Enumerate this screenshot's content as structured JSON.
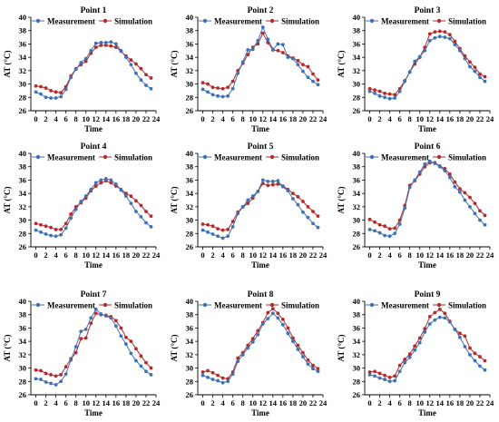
{
  "chart_data": [
    {
      "type": "line",
      "title": "Point 1",
      "xlabel": "Time",
      "ylabel": "AT (°C)",
      "x": [
        0,
        1,
        2,
        3,
        4,
        5,
        6,
        7,
        8,
        9,
        10,
        11,
        12,
        13,
        14,
        15,
        16,
        17,
        18,
        19,
        20,
        21,
        22,
        23
      ],
      "xticks": [
        0,
        2,
        4,
        6,
        8,
        10,
        12,
        14,
        16,
        18,
        20,
        22,
        24
      ],
      "yticks": [
        26,
        28,
        30,
        32,
        34,
        36,
        38,
        40
      ],
      "xlim": [
        -1,
        24
      ],
      "ylim": [
        26,
        40
      ],
      "legend_position": "top",
      "series": [
        {
          "name": "Measurement",
          "color": "#3e72b5",
          "values": [
            28.8,
            28.5,
            28.0,
            27.9,
            27.9,
            28.1,
            29.2,
            31.0,
            32.2,
            33.2,
            33.8,
            35.0,
            36.1,
            36.2,
            36.2,
            36.3,
            36.0,
            35.0,
            34.0,
            32.9,
            31.6,
            30.6,
            29.8,
            29.3
          ]
        },
        {
          "name": "Simulation",
          "color": "#b52a2a",
          "values": [
            29.7,
            29.6,
            29.4,
            29.0,
            28.8,
            28.7,
            29.6,
            31.2,
            32.3,
            32.9,
            33.4,
            34.6,
            35.5,
            35.8,
            35.8,
            35.7,
            35.5,
            34.9,
            34.2,
            33.6,
            33.0,
            32.3,
            31.4,
            30.9
          ]
        }
      ]
    },
    {
      "type": "line",
      "title": "Point 2",
      "xlabel": "Time",
      "ylabel": "AT (°C)",
      "x": [
        0,
        1,
        2,
        3,
        4,
        5,
        6,
        7,
        8,
        9,
        10,
        11,
        12,
        13,
        14,
        15,
        16,
        17,
        18,
        19,
        20,
        21,
        22,
        23
      ],
      "xticks": [
        0,
        2,
        4,
        6,
        8,
        10,
        12,
        14,
        16,
        18,
        20,
        22,
        24
      ],
      "yticks": [
        26,
        28,
        30,
        32,
        34,
        36,
        38,
        40
      ],
      "xlim": [
        -1,
        24
      ],
      "ylim": [
        26,
        40
      ],
      "legend_position": "top",
      "series": [
        {
          "name": "Measurement",
          "color": "#3e72b5",
          "values": [
            29.2,
            28.8,
            28.4,
            28.2,
            28.1,
            28.2,
            29.3,
            31.6,
            33.3,
            35.1,
            35.2,
            36.5,
            38.5,
            36.7,
            35.2,
            36.0,
            35.9,
            34.0,
            33.8,
            32.9,
            31.9,
            31.0,
            30.4,
            29.9
          ]
        },
        {
          "name": "Simulation",
          "color": "#b52a2a",
          "values": [
            30.2,
            30.0,
            29.5,
            29.4,
            29.3,
            29.5,
            30.4,
            32.0,
            33.1,
            34.4,
            35.5,
            36.0,
            37.6,
            36.2,
            35.1,
            35.0,
            34.7,
            34.2,
            33.9,
            33.5,
            32.9,
            32.6,
            31.5,
            30.6
          ]
        }
      ]
    },
    {
      "type": "line",
      "title": "Point 3",
      "xlabel": "Time",
      "ylabel": "AT (°C)",
      "x": [
        0,
        1,
        2,
        3,
        4,
        5,
        6,
        7,
        8,
        9,
        10,
        11,
        12,
        13,
        14,
        15,
        16,
        17,
        18,
        19,
        20,
        21,
        22,
        23
      ],
      "xticks": [
        0,
        2,
        4,
        6,
        8,
        10,
        12,
        14,
        16,
        18,
        20,
        22,
        24
      ],
      "yticks": [
        26,
        28,
        30,
        32,
        34,
        36,
        38,
        40
      ],
      "xlim": [
        -1,
        24
      ],
      "ylim": [
        26,
        40
      ],
      "legend_position": "top",
      "series": [
        {
          "name": "Measurement",
          "color": "#3e72b5",
          "values": [
            28.9,
            28.6,
            28.2,
            28.0,
            27.8,
            27.9,
            28.9,
            30.4,
            31.8,
            33.4,
            34.1,
            35.0,
            36.5,
            36.9,
            37.1,
            37.0,
            36.8,
            35.9,
            35.0,
            33.8,
            32.6,
            31.9,
            31.0,
            30.4
          ]
        },
        {
          "name": "Simulation",
          "color": "#b52a2a",
          "values": [
            29.3,
            29.1,
            28.9,
            28.6,
            28.5,
            28.4,
            29.3,
            30.5,
            31.8,
            33.0,
            34.0,
            35.5,
            37.5,
            37.8,
            37.9,
            37.8,
            37.4,
            36.4,
            35.3,
            34.2,
            33.3,
            32.5,
            31.5,
            31.1
          ]
        }
      ]
    },
    {
      "type": "line",
      "title": "Point 4",
      "xlabel": "Time",
      "ylabel": "AT (°C)",
      "x": [
        0,
        1,
        2,
        3,
        4,
        5,
        6,
        7,
        8,
        9,
        10,
        11,
        12,
        13,
        14,
        15,
        16,
        17,
        18,
        19,
        20,
        21,
        22,
        23
      ],
      "xticks": [
        0,
        2,
        4,
        6,
        8,
        10,
        12,
        14,
        16,
        18,
        20,
        22,
        24
      ],
      "yticks": [
        26,
        28,
        30,
        32,
        34,
        36,
        38,
        40
      ],
      "xlim": [
        -1,
        24
      ],
      "ylim": [
        26,
        40
      ],
      "legend_position": "top",
      "series": [
        {
          "name": "Measurement",
          "color": "#3e72b5",
          "values": [
            28.5,
            28.2,
            27.9,
            27.7,
            27.6,
            27.8,
            28.8,
            30.3,
            31.6,
            32.8,
            33.6,
            34.6,
            35.6,
            36.0,
            36.2,
            36.0,
            35.4,
            34.5,
            33.6,
            32.5,
            31.3,
            30.5,
            29.6,
            29.0
          ]
        },
        {
          "name": "Simulation",
          "color": "#b52a2a",
          "values": [
            29.5,
            29.3,
            29.1,
            28.9,
            28.6,
            28.6,
            29.5,
            30.9,
            32.0,
            32.6,
            33.3,
            34.4,
            35.1,
            35.6,
            35.9,
            35.6,
            35.1,
            34.6,
            34.0,
            33.6,
            32.9,
            32.2,
            31.3,
            30.6
          ]
        }
      ]
    },
    {
      "type": "line",
      "title": "Point 5",
      "xlabel": "Time",
      "ylabel": "AT (°C)",
      "x": [
        0,
        1,
        2,
        3,
        4,
        5,
        6,
        7,
        8,
        9,
        10,
        11,
        12,
        13,
        14,
        15,
        16,
        17,
        18,
        19,
        20,
        21,
        22,
        23
      ],
      "xticks": [
        0,
        2,
        4,
        6,
        8,
        10,
        12,
        14,
        16,
        18,
        20,
        22,
        24
      ],
      "yticks": [
        26,
        28,
        30,
        32,
        34,
        36,
        38,
        40
      ],
      "xlim": [
        -1,
        24
      ],
      "ylim": [
        26,
        40
      ],
      "legend_position": "top",
      "series": [
        {
          "name": "Measurement",
          "color": "#3e72b5",
          "values": [
            28.5,
            28.2,
            27.9,
            27.6,
            27.3,
            27.6,
            29.0,
            31.0,
            32.0,
            33.0,
            33.6,
            34.3,
            36.0,
            35.8,
            35.8,
            35.9,
            35.0,
            34.4,
            33.2,
            32.3,
            31.2,
            30.4,
            29.5,
            28.9
          ]
        },
        {
          "name": "Simulation",
          "color": "#b52a2a",
          "values": [
            29.4,
            29.3,
            29.1,
            28.7,
            28.5,
            28.6,
            29.8,
            31.2,
            32.0,
            32.5,
            33.3,
            34.3,
            35.5,
            35.2,
            35.3,
            35.4,
            35.1,
            34.6,
            34.0,
            33.5,
            32.8,
            32.0,
            31.3,
            30.6
          ]
        }
      ]
    },
    {
      "type": "line",
      "title": "Point 6",
      "xlabel": "Time",
      "ylabel": "AT (°C)",
      "x": [
        0,
        1,
        2,
        3,
        4,
        5,
        6,
        7,
        8,
        9,
        10,
        11,
        12,
        13,
        14,
        15,
        16,
        17,
        18,
        19,
        20,
        21,
        22,
        23
      ],
      "xticks": [
        0,
        2,
        4,
        6,
        8,
        10,
        12,
        14,
        16,
        18,
        20,
        22,
        24
      ],
      "yticks": [
        26,
        28,
        30,
        32,
        34,
        36,
        38,
        40
      ],
      "xlim": [
        -1,
        24
      ],
      "ylim": [
        26,
        40
      ],
      "legend_position": "top",
      "series": [
        {
          "name": "Measurement",
          "color": "#3e72b5",
          "values": [
            28.6,
            28.4,
            28.1,
            27.7,
            27.6,
            28.0,
            29.4,
            31.8,
            34.9,
            36.0,
            37.2,
            38.4,
            38.8,
            38.5,
            38.0,
            37.4,
            36.4,
            35.0,
            34.2,
            33.0,
            32.0,
            31.0,
            30.0,
            29.3
          ]
        },
        {
          "name": "Simulation",
          "color": "#b52a2a",
          "values": [
            30.1,
            29.7,
            29.3,
            29.1,
            28.7,
            28.8,
            30.0,
            32.2,
            35.2,
            35.9,
            36.9,
            38.0,
            38.6,
            38.6,
            38.1,
            37.7,
            36.9,
            35.7,
            34.7,
            34.1,
            33.4,
            32.5,
            31.4,
            30.7
          ]
        }
      ]
    },
    {
      "type": "line",
      "title": "Point 7",
      "xlabel": "Time",
      "ylabel": "AT (°C)",
      "x": [
        0,
        1,
        2,
        3,
        4,
        5,
        6,
        7,
        8,
        9,
        10,
        11,
        12,
        13,
        14,
        15,
        16,
        17,
        18,
        19,
        20,
        21,
        22,
        23
      ],
      "xticks": [
        0,
        2,
        4,
        6,
        8,
        10,
        12,
        14,
        16,
        18,
        20,
        22,
        24
      ],
      "yticks": [
        26,
        28,
        30,
        32,
        34,
        36,
        38,
        40
      ],
      "xlim": [
        -1,
        24
      ],
      "ylim": [
        26,
        40
      ],
      "legend_position": "top",
      "series": [
        {
          "name": "Measurement",
          "color": "#3e72b5",
          "values": [
            28.4,
            28.3,
            27.9,
            27.7,
            27.5,
            28.0,
            29.1,
            31.2,
            33.2,
            35.5,
            35.8,
            37.5,
            38.8,
            38.1,
            37.8,
            37.5,
            36.3,
            34.8,
            33.6,
            32.2,
            31.1,
            30.3,
            29.5,
            29.0
          ]
        },
        {
          "name": "Simulation",
          "color": "#b52a2a",
          "values": [
            29.7,
            29.6,
            29.2,
            29.0,
            28.8,
            29.0,
            30.2,
            31.4,
            32.3,
            34.4,
            34.5,
            36.7,
            38.2,
            38.0,
            37.9,
            37.7,
            37.1,
            36.0,
            34.6,
            34.0,
            32.9,
            31.8,
            30.8,
            30.0
          ]
        }
      ]
    },
    {
      "type": "line",
      "title": "Point 8",
      "xlabel": "Time",
      "ylabel": "AT (°C)",
      "x": [
        0,
        1,
        2,
        3,
        4,
        5,
        6,
        7,
        8,
        9,
        10,
        11,
        12,
        13,
        14,
        15,
        16,
        17,
        18,
        19,
        20,
        21,
        22,
        23
      ],
      "xticks": [
        0,
        2,
        4,
        6,
        8,
        10,
        12,
        14,
        16,
        18,
        20,
        22,
        24
      ],
      "yticks": [
        26,
        28,
        30,
        32,
        34,
        36,
        38,
        40
      ],
      "xlim": [
        -1,
        24
      ],
      "ylim": [
        26,
        40
      ],
      "legend_position": "top",
      "series": [
        {
          "name": "Measurement",
          "color": "#3e72b5",
          "values": [
            28.9,
            28.6,
            28.3,
            28.1,
            27.8,
            28.0,
            29.1,
            31.0,
            32.0,
            33.0,
            33.9,
            35.0,
            36.6,
            37.4,
            38.2,
            37.5,
            36.5,
            35.2,
            34.0,
            32.8,
            31.7,
            30.6,
            29.9,
            29.5
          ]
        },
        {
          "name": "Simulation",
          "color": "#b52a2a",
          "values": [
            29.4,
            29.6,
            29.3,
            28.9,
            28.5,
            28.4,
            29.4,
            31.5,
            32.3,
            33.4,
            34.4,
            35.6,
            36.8,
            38.3,
            38.9,
            38.2,
            37.3,
            36.0,
            34.5,
            33.4,
            32.3,
            31.2,
            30.4,
            29.9
          ]
        }
      ]
    },
    {
      "type": "line",
      "title": "Point 9",
      "xlabel": "Time",
      "ylabel": "AT (°C)",
      "x": [
        0,
        1,
        2,
        3,
        4,
        5,
        6,
        7,
        8,
        9,
        10,
        11,
        12,
        13,
        14,
        15,
        16,
        17,
        18,
        19,
        20,
        21,
        22,
        23
      ],
      "xticks": [
        0,
        2,
        4,
        6,
        8,
        10,
        12,
        14,
        16,
        18,
        20,
        22,
        24
      ],
      "yticks": [
        26,
        28,
        30,
        32,
        34,
        36,
        38,
        40
      ],
      "xlim": [
        -1,
        24
      ],
      "ylim": [
        26,
        40
      ],
      "legend_position": "top",
      "series": [
        {
          "name": "Measurement",
          "color": "#3e72b5",
          "values": [
            29.0,
            28.8,
            28.5,
            28.3,
            28.0,
            28.1,
            29.5,
            30.8,
            31.6,
            32.7,
            33.8,
            35.4,
            36.6,
            37.2,
            37.6,
            37.5,
            36.9,
            35.8,
            34.6,
            33.2,
            32.0,
            31.1,
            30.3,
            29.7
          ]
        },
        {
          "name": "Simulation",
          "color": "#b52a2a",
          "values": [
            29.4,
            29.5,
            29.2,
            28.9,
            28.6,
            28.8,
            30.4,
            31.3,
            32.1,
            33.3,
            34.5,
            35.9,
            37.7,
            38.3,
            38.8,
            38.2,
            37.0,
            35.8,
            35.2,
            34.8,
            33.0,
            32.2,
            31.7,
            31.1
          ]
        }
      ]
    }
  ]
}
